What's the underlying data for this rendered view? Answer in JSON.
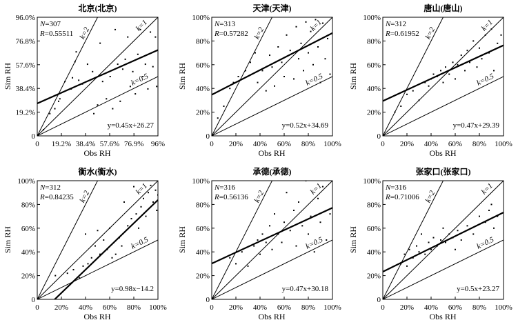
{
  "chart_data": [
    {
      "type": "scatter",
      "title": "北京(北京)",
      "xlabel": "Obs RH",
      "ylabel": "Sim RH",
      "xlim": [
        0,
        96
      ],
      "ylim": [
        0,
        96
      ],
      "x_ticks": [
        0,
        19.2,
        38.4,
        57.6,
        76.9,
        96
      ],
      "x_tick_labels": [
        "0",
        "19.2%",
        "38.4%",
        "57.6%",
        "76.9%",
        "96%"
      ],
      "y_ticks": [
        0,
        19.2,
        38.4,
        57.6,
        76.8,
        96
      ],
      "y_tick_labels": [
        "0",
        "19.2%",
        "38.4%",
        "57.6%",
        "76.8%",
        "96.0%"
      ],
      "n_label": "N",
      "n": "=307",
      "r_label": "R",
      "r": "=0.55511",
      "equation": "y=0.45x+26.27",
      "fit": {
        "slope": 0.45,
        "intercept": 26.27
      },
      "ref_lines": [
        {
          "k": 2,
          "label": "k=2"
        },
        {
          "k": 1,
          "label": "k=1"
        },
        {
          "k": 0.5,
          "label": "k=0.5"
        }
      ],
      "points": [
        [
          5,
          5
        ],
        [
          10,
          18
        ],
        [
          14,
          22
        ],
        [
          17,
          28
        ],
        [
          18,
          30
        ],
        [
          22,
          44
        ],
        [
          27,
          38
        ],
        [
          28,
          47
        ],
        [
          30,
          60
        ],
        [
          31,
          68
        ],
        [
          33,
          45
        ],
        [
          36,
          42
        ],
        [
          40,
          58
        ],
        [
          44,
          52
        ],
        [
          45,
          18
        ],
        [
          48,
          25
        ],
        [
          50,
          75
        ],
        [
          52,
          44
        ],
        [
          55,
          30
        ],
        [
          58,
          48
        ],
        [
          60,
          22
        ],
        [
          62,
          86
        ],
        [
          64,
          58
        ],
        [
          66,
          28
        ],
        [
          68,
          54
        ],
        [
          70,
          62
        ],
        [
          72,
          80
        ],
        [
          74,
          40
        ],
        [
          76,
          52
        ],
        [
          78,
          34
        ],
        [
          80,
          66
        ],
        [
          82,
          86
        ],
        [
          84,
          48
        ],
        [
          86,
          58
        ],
        [
          88,
          38
        ],
        [
          90,
          84
        ],
        [
          92,
          56
        ],
        [
          94,
          80
        ],
        [
          95,
          40
        ]
      ]
    },
    {
      "type": "scatter",
      "title": "天津(天津)",
      "xlabel": "Obs RH",
      "ylabel": "Sim RH",
      "xlim": [
        0,
        100
      ],
      "ylim": [
        0,
        100
      ],
      "x_ticks": [
        0,
        20,
        40,
        60,
        80,
        100
      ],
      "x_tick_labels": [
        "0",
        "20%",
        "40%",
        "60%",
        "80%",
        "100%"
      ],
      "y_ticks": [
        0,
        20,
        40,
        60,
        80,
        100
      ],
      "y_tick_labels": [
        "0",
        "20%",
        "40%",
        "60%",
        "80%",
        "100%"
      ],
      "n_label": "N",
      "n": "=313",
      "r_label": "R",
      "r": "=0.57282",
      "equation": "y=0.52x+34.69",
      "fit": {
        "slope": 0.52,
        "intercept": 34.69
      },
      "ref_lines": [
        {
          "k": 2,
          "label": "k=2"
        },
        {
          "k": 1,
          "label": "k=1"
        },
        {
          "k": 0.5,
          "label": "k=0.5"
        }
      ],
      "points": [
        [
          5,
          15
        ],
        [
          10,
          25
        ],
        [
          15,
          40
        ],
        [
          18,
          45
        ],
        [
          22,
          50
        ],
        [
          28,
          55
        ],
        [
          32,
          62
        ],
        [
          36,
          70
        ],
        [
          38,
          45
        ],
        [
          42,
          55
        ],
        [
          45,
          38
        ],
        [
          48,
          68
        ],
        [
          50,
          58
        ],
        [
          52,
          42
        ],
        [
          55,
          75
        ],
        [
          58,
          62
        ],
        [
          60,
          50
        ],
        [
          62,
          85
        ],
        [
          65,
          72
        ],
        [
          68,
          48
        ],
        [
          70,
          92
        ],
        [
          72,
          65
        ],
        [
          74,
          78
        ],
        [
          76,
          55
        ],
        [
          78,
          96
        ],
        [
          80,
          70
        ],
        [
          82,
          88
        ],
        [
          84,
          60
        ],
        [
          86,
          98
        ],
        [
          88,
          75
        ],
        [
          90,
          45
        ],
        [
          92,
          95
        ],
        [
          94,
          65
        ],
        [
          96,
          82
        ],
        [
          98,
          52
        ]
      ]
    },
    {
      "type": "scatter",
      "title": "唐山(唐山)",
      "xlabel": "Obs RH",
      "ylabel": "Sim RH",
      "xlim": [
        0,
        100
      ],
      "ylim": [
        0,
        100
      ],
      "x_ticks": [
        0,
        20,
        40,
        60,
        80,
        100
      ],
      "x_tick_labels": [
        "0",
        "20%",
        "40%",
        "60%",
        "80%",
        "100%"
      ],
      "y_ticks": [
        0,
        20,
        40,
        60,
        80,
        100
      ],
      "y_tick_labels": [
        "0",
        "20%",
        "40%",
        "60%",
        "80%",
        "100%"
      ],
      "n_label": "N",
      "n": "=312",
      "r_label": "R",
      "r": "=0.61952",
      "equation": "y=0.47x+29.39",
      "fit": {
        "slope": 0.47,
        "intercept": 29.39
      },
      "ref_lines": [
        {
          "k": 2,
          "label": "k=2"
        },
        {
          "k": 1,
          "label": "k=1"
        },
        {
          "k": 0.5,
          "label": "k=0.5"
        }
      ],
      "points": [
        [
          10,
          20
        ],
        [
          15,
          25
        ],
        [
          20,
          35
        ],
        [
          25,
          38
        ],
        [
          30,
          30
        ],
        [
          35,
          45
        ],
        [
          38,
          42
        ],
        [
          40,
          48
        ],
        [
          42,
          52
        ],
        [
          45,
          50
        ],
        [
          48,
          55
        ],
        [
          50,
          45
        ],
        [
          52,
          58
        ],
        [
          55,
          52
        ],
        [
          58,
          62
        ],
        [
          60,
          48
        ],
        [
          62,
          60
        ],
        [
          65,
          68
        ],
        [
          68,
          55
        ],
        [
          70,
          72
        ],
        [
          72,
          62
        ],
        [
          75,
          80
        ],
        [
          78,
          58
        ],
        [
          80,
          74
        ],
        [
          82,
          65
        ],
        [
          85,
          85
        ],
        [
          88,
          70
        ],
        [
          90,
          90
        ],
        [
          92,
          55
        ],
        [
          95,
          78
        ],
        [
          98,
          85
        ]
      ]
    },
    {
      "type": "scatter",
      "title": "衡水(衡水)",
      "xlabel": "Obs RH",
      "ylabel": "Sim RH",
      "xlim": [
        0,
        100
      ],
      "ylim": [
        0,
        100
      ],
      "x_ticks": [
        0,
        20,
        40,
        60,
        80,
        100
      ],
      "x_tick_labels": [
        "0",
        "20%",
        "40%",
        "60%",
        "80%",
        "100%"
      ],
      "y_ticks": [
        0,
        20,
        40,
        60,
        80,
        100
      ],
      "y_tick_labels": [
        "0",
        "20%",
        "40%",
        "60%",
        "80%",
        "100%"
      ],
      "n_label": "N",
      "n": "=312",
      "r_label": "R",
      "r": "=0.84235",
      "equation": "y=0.98x−14.2",
      "fit": {
        "slope": 0.98,
        "intercept": -14.2
      },
      "ref_lines": [
        {
          "k": 2,
          "label": "k=2"
        },
        {
          "k": 1,
          "label": "k=1"
        },
        {
          "k": 0.5,
          "label": "k=0.5"
        }
      ],
      "points": [
        [
          15,
          20
        ],
        [
          25,
          22
        ],
        [
          30,
          25
        ],
        [
          35,
          18
        ],
        [
          38,
          28
        ],
        [
          40,
          55
        ],
        [
          42,
          30
        ],
        [
          45,
          35
        ],
        [
          48,
          45
        ],
        [
          50,
          58
        ],
        [
          52,
          38
        ],
        [
          55,
          50
        ],
        [
          58,
          42
        ],
        [
          60,
          60
        ],
        [
          62,
          35
        ],
        [
          65,
          38
        ],
        [
          68,
          52
        ],
        [
          70,
          45
        ],
        [
          72,
          82
        ],
        [
          75,
          62
        ],
        [
          78,
          68
        ],
        [
          80,
          95
        ],
        [
          82,
          72
        ],
        [
          84,
          60
        ],
        [
          86,
          78
        ],
        [
          88,
          85
        ],
        [
          90,
          70
        ],
        [
          92,
          90
        ],
        [
          94,
          96
        ],
        [
          96,
          82
        ],
        [
          98,
          92
        ],
        [
          99,
          75
        ],
        [
          100,
          88
        ]
      ]
    },
    {
      "type": "scatter",
      "title": "承德(承德)",
      "xlabel": "Obs RH",
      "ylabel": "Sim RH",
      "xlim": [
        0,
        100
      ],
      "ylim": [
        0,
        100
      ],
      "x_ticks": [
        0,
        20,
        40,
        60,
        80,
        100
      ],
      "x_tick_labels": [
        "0",
        "20%",
        "40%",
        "60%",
        "80%",
        "100%"
      ],
      "y_ticks": [
        0,
        20,
        40,
        60,
        80,
        100
      ],
      "y_tick_labels": [
        "0",
        "20%",
        "40%",
        "60%",
        "80%",
        "100%"
      ],
      "n_label": "N",
      "n": "=316",
      "r_label": "R",
      "r": "=0.56136",
      "equation": "y=0.47x+30.18",
      "fit": {
        "slope": 0.47,
        "intercept": 30.18
      },
      "ref_lines": [
        {
          "k": 2,
          "label": "k=2"
        },
        {
          "k": 1,
          "label": "k=1"
        },
        {
          "k": 0.5,
          "label": "k=0.5"
        }
      ],
      "points": [
        [
          15,
          35
        ],
        [
          20,
          30
        ],
        [
          25,
          40
        ],
        [
          30,
          28
        ],
        [
          35,
          45
        ],
        [
          38,
          50
        ],
        [
          40,
          38
        ],
        [
          42,
          55
        ],
        [
          45,
          48
        ],
        [
          48,
          62
        ],
        [
          50,
          42
        ],
        [
          52,
          72
        ],
        [
          55,
          55
        ],
        [
          58,
          48
        ],
        [
          60,
          65
        ],
        [
          62,
          90
        ],
        [
          65,
          58
        ],
        [
          68,
          75
        ],
        [
          70,
          45
        ],
        [
          72,
          82
        ],
        [
          75,
          62
        ],
        [
          78,
          100
        ],
        [
          80,
          55
        ],
        [
          82,
          70
        ],
        [
          85,
          40
        ],
        [
          88,
          85
        ],
        [
          90,
          65
        ],
        [
          92,
          95
        ],
        [
          95,
          50
        ],
        [
          98,
          72
        ]
      ]
    },
    {
      "type": "scatter",
      "title": "张家口(张家口)",
      "xlabel": "Obs RH",
      "ylabel": "Sim RH",
      "xlim": [
        0,
        100
      ],
      "ylim": [
        0,
        100
      ],
      "x_ticks": [
        0,
        20,
        40,
        60,
        80,
        100
      ],
      "x_tick_labels": [
        "0",
        "20%",
        "40%",
        "60%",
        "80%",
        "100%"
      ],
      "y_ticks": [
        0,
        20,
        40,
        60,
        80,
        100
      ],
      "y_tick_labels": [
        "0",
        "20%",
        "40%",
        "60%",
        "80%",
        "100%"
      ],
      "n_label": "N",
      "n": "=316",
      "r_label": "R",
      "r": "=0.71006",
      "equation": "y=0.5x+23.27",
      "fit": {
        "slope": 0.5,
        "intercept": 23.27
      },
      "ref_lines": [
        {
          "k": 2,
          "label": "k=2"
        },
        {
          "k": 1,
          "label": "k=1"
        },
        {
          "k": 0.5,
          "label": "k=0.5"
        }
      ],
      "points": [
        [
          15,
          30
        ],
        [
          18,
          38
        ],
        [
          20,
          28
        ],
        [
          22,
          42
        ],
        [
          25,
          35
        ],
        [
          28,
          45
        ],
        [
          30,
          40
        ],
        [
          32,
          55
        ],
        [
          35,
          38
        ],
        [
          38,
          48
        ],
        [
          40,
          42
        ],
        [
          42,
          52
        ],
        [
          45,
          45
        ],
        [
          48,
          50
        ],
        [
          50,
          60
        ],
        [
          52,
          48
        ],
        [
          55,
          55
        ],
        [
          58,
          52
        ],
        [
          60,
          42
        ],
        [
          62,
          58
        ],
        [
          65,
          50
        ],
        [
          70,
          62
        ],
        [
          75,
          55
        ],
        [
          80,
          70
        ],
        [
          85,
          65
        ],
        [
          88,
          75
        ],
        [
          90,
          80
        ],
        [
          92,
          60
        ],
        [
          95,
          70
        ]
      ]
    }
  ]
}
